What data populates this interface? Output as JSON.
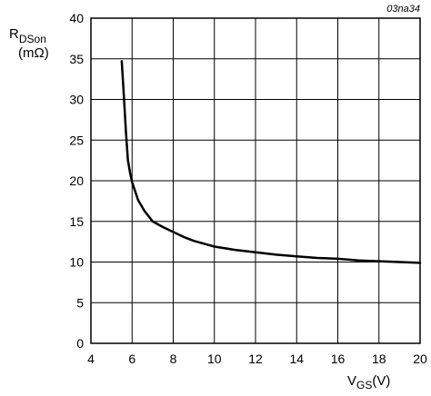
{
  "figure_id": "03na34",
  "chart_data": {
    "type": "line",
    "xlabel": {
      "main": "V",
      "sub": "GS",
      "unit": "(V)"
    },
    "ylabel": {
      "main": "R",
      "sub": "DSon",
      "unit": "(mΩ)"
    },
    "xlim": [
      4,
      20
    ],
    "ylim": [
      0,
      40
    ],
    "xticks": [
      4,
      6,
      8,
      10,
      12,
      14,
      16,
      18,
      20
    ],
    "yticks": [
      0,
      5,
      10,
      15,
      20,
      25,
      30,
      35,
      40
    ],
    "grid": true,
    "legend": "none",
    "series": [
      {
        "color": "#000000",
        "x": [
          5.5,
          5.6,
          5.7,
          5.8,
          5.9,
          6.0,
          6.3,
          6.6,
          7.0,
          7.5,
          8.0,
          8.5,
          9.0,
          10.0,
          11.0,
          12.0,
          13.0,
          14.0,
          15.0,
          16.0,
          17.0,
          18.0,
          19.0,
          20.0
        ],
        "y": [
          34.7,
          30.5,
          26.0,
          22.5,
          21.0,
          19.8,
          17.6,
          16.3,
          15.0,
          14.3,
          13.7,
          13.1,
          12.6,
          11.9,
          11.5,
          11.2,
          10.9,
          10.7,
          10.5,
          10.4,
          10.2,
          10.1,
          10.0,
          9.9
        ]
      }
    ]
  }
}
